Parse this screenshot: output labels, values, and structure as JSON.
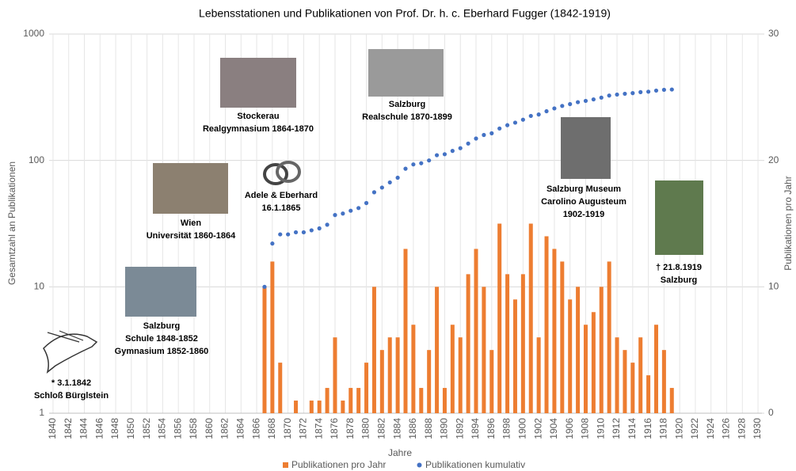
{
  "chart_data": {
    "type": "bar",
    "title": "Lebensstationen und Publikationen von Prof. Dr. h. c. Eberhard Fugger (1842-1919)",
    "xlabel": "Jahre",
    "ylabel": "Gesamtzahl an Publikationen",
    "y2label": "Publikationen pro Jahr",
    "x": [
      1867,
      1868,
      1869,
      1870,
      1871,
      1872,
      1873,
      1874,
      1875,
      1876,
      1877,
      1878,
      1879,
      1880,
      1881,
      1882,
      1883,
      1884,
      1885,
      1886,
      1887,
      1888,
      1889,
      1890,
      1891,
      1892,
      1893,
      1894,
      1895,
      1896,
      1897,
      1898,
      1899,
      1900,
      1901,
      1902,
      1903,
      1904,
      1905,
      1906,
      1907,
      1908,
      1909,
      1910,
      1911,
      1912,
      1913,
      1914,
      1915,
      1916,
      1917,
      1918,
      1919
    ],
    "series": [
      {
        "name": "Publikationen pro Jahr",
        "type": "bar",
        "axis": "y2",
        "color": "#ed7d31",
        "values": [
          10,
          12,
          4,
          0,
          1,
          0,
          1,
          1,
          2,
          6,
          1,
          2,
          2,
          4,
          10,
          5,
          6,
          6,
          13,
          7,
          2,
          5,
          10,
          2,
          7,
          6,
          11,
          13,
          10,
          5,
          15,
          11,
          9,
          11,
          15,
          6,
          14,
          13,
          12,
          9,
          10,
          7,
          8,
          10,
          12,
          6,
          5,
          4,
          6,
          3,
          7,
          5,
          2
        ]
      },
      {
        "name": "Publikationen kumulativ",
        "type": "scatter",
        "color": "#4472c4",
        "values": [
          10,
          22,
          26,
          26,
          27,
          27,
          28,
          29,
          31,
          37,
          38,
          40,
          42,
          46,
          56,
          61,
          67,
          73,
          86,
          93,
          95,
          100,
          110,
          112,
          119,
          125,
          136,
          149,
          159,
          164,
          179,
          190,
          199,
          210,
          225,
          231,
          245,
          258,
          270,
          279,
          289,
          296,
          304,
          314,
          326,
          332,
          337,
          341,
          347,
          350,
          357,
          362,
          364
        ]
      }
    ],
    "xlim": [
      1839.5,
      1930.5
    ],
    "xticks": [
      1840,
      1842,
      1844,
      1846,
      1848,
      1850,
      1852,
      1854,
      1856,
      1858,
      1860,
      1862,
      1864,
      1866,
      1868,
      1870,
      1872,
      1874,
      1876,
      1878,
      1880,
      1882,
      1884,
      1886,
      1888,
      1890,
      1892,
      1894,
      1896,
      1898,
      1900,
      1902,
      1904,
      1906,
      1908,
      1910,
      1912,
      1914,
      1916,
      1918,
      1920,
      1922,
      1924,
      1926,
      1928,
      1930
    ],
    "ylim": [
      1,
      1000
    ],
    "yscale": "log",
    "yticks": [
      1,
      10,
      100,
      1000
    ],
    "y2lim": [
      0,
      30
    ],
    "y2ticks": [
      0,
      10,
      20,
      30
    ],
    "grid": true,
    "legend": "bottom",
    "annotations": [
      {
        "lines": [
          "* 3.1.1842",
          "Schloß Bürglstein"
        ]
      },
      {
        "lines": [
          "Salzburg",
          "Schule 1848-1852",
          "Gymnasium 1852-1860"
        ]
      },
      {
        "lines": [
          "Wien",
          "Universität 1860-1864"
        ]
      },
      {
        "lines": [
          "Adele & Eberhard",
          "16.1.1865"
        ]
      },
      {
        "lines": [
          "Stockerau",
          "Realgymnasium 1864-1870"
        ]
      },
      {
        "lines": [
          "Salzburg",
          "Realschule 1870-1899"
        ]
      },
      {
        "lines": [
          "Salzburg Museum",
          "Carolino Augusteum",
          "1902-1919"
        ]
      },
      {
        "lines": [
          "† 21.8.1919",
          "Salzburg"
        ]
      }
    ]
  }
}
